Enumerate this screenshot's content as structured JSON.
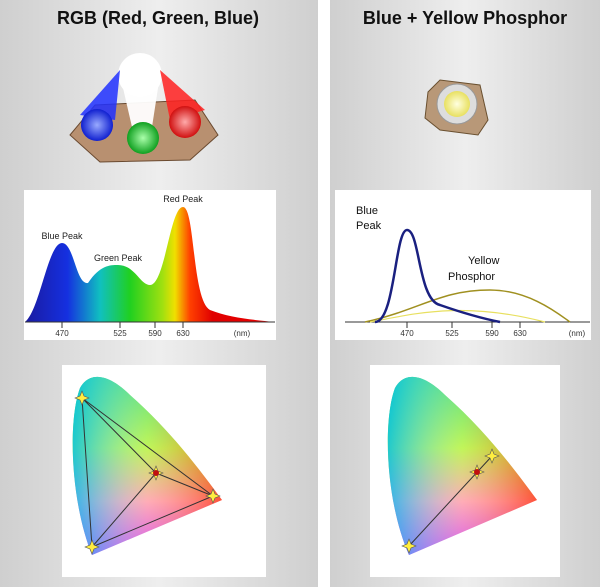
{
  "panels": [
    {
      "title": "RGB (Red, Green, Blue)",
      "spectrum": {
        "labels": [
          "Blue Peak",
          "Green Peak",
          "Red Peak"
        ],
        "ticks": [
          "470",
          "525",
          "590",
          "630"
        ],
        "unit": "(nm)"
      }
    },
    {
      "title": "Blue + Yellow Phosphor",
      "spectrum": {
        "blue_peak_lines": [
          "Blue",
          "Peak"
        ],
        "yellow_lines": [
          "Yellow",
          "Phosphor"
        ],
        "ticks": [
          "470",
          "525",
          "590",
          "630"
        ],
        "unit": "(nm)"
      }
    }
  ]
}
